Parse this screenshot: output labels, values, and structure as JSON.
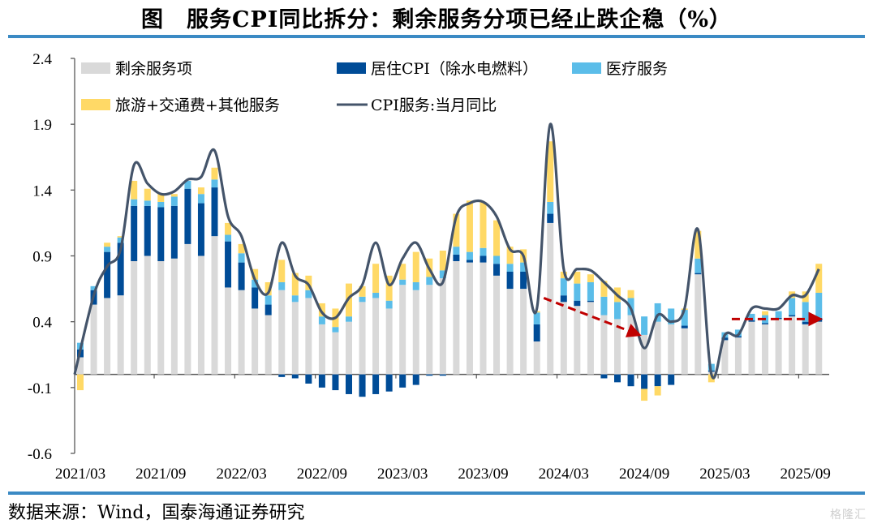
{
  "title": "图　服务CPI同比拆分：剩余服务分项已经止跌企稳（%）",
  "source": "数据来源：Wind，国泰海通证券研究",
  "watermark": "格隆汇",
  "chart_data": {
    "type": "bar",
    "stacked": true,
    "title": "服务CPI同比拆分：剩余服务分项已经止跌企稳（%）",
    "xlabel": "",
    "ylabel": "",
    "ylim": [
      -0.6,
      2.4
    ],
    "yticks": [
      2.4,
      1.9,
      1.4,
      0.9,
      0.4,
      -0.1,
      -0.6
    ],
    "xtick_labels": [
      "2021/03",
      "2021/09",
      "2022/03",
      "2022/09",
      "2023/03",
      "2023/09",
      "2024/03",
      "2024/09",
      "2025/03",
      "2025/09"
    ],
    "legend_position": "top-left",
    "colors": {
      "rest": "#d9d9d9",
      "housing": "#004c97",
      "medical": "#5bbde9",
      "travel": "#ffd966",
      "line": "#44546a",
      "arrow": "#c00000"
    },
    "categories": [
      "2021/03",
      "2021/04",
      "2021/05",
      "2021/06",
      "2021/07",
      "2021/08",
      "2021/09",
      "2021/10",
      "2021/11",
      "2021/12",
      "2022/01",
      "2022/02",
      "2022/03",
      "2022/04",
      "2022/05",
      "2022/06",
      "2022/07",
      "2022/08",
      "2022/09",
      "2022/10",
      "2022/11",
      "2022/12",
      "2023/01",
      "2023/02",
      "2023/03",
      "2023/04",
      "2023/05",
      "2023/06",
      "2023/07",
      "2023/08",
      "2023/09",
      "2023/10",
      "2023/11",
      "2023/12",
      "2024/01",
      "2024/02",
      "2024/03",
      "2024/04",
      "2024/05",
      "2024/06",
      "2024/07",
      "2024/08",
      "2024/09",
      "2024/10",
      "2024/11",
      "2024/12",
      "2025/01",
      "2025/02",
      "2025/03",
      "2025/04",
      "2025/05",
      "2025/06",
      "2025/07",
      "2025/08",
      "2025/09",
      "2025/10"
    ],
    "series": [
      {
        "name": "剩余服务项",
        "key": "rest",
        "values": [
          0.13,
          0.53,
          0.58,
          0.6,
          0.86,
          0.9,
          0.86,
          0.88,
          0.99,
          0.9,
          1.05,
          0.66,
          0.64,
          0.5,
          0.45,
          0.64,
          0.55,
          0.58,
          0.38,
          0.32,
          0.4,
          0.55,
          0.58,
          0.5,
          0.68,
          0.64,
          0.68,
          0.73,
          0.86,
          0.85,
          0.85,
          0.75,
          0.65,
          0.65,
          0.25,
          1.15,
          0.55,
          0.52,
          0.55,
          0.45,
          0.42,
          0.45,
          0.3,
          0.4,
          0.38,
          0.35,
          0.76,
          0.02,
          0.26,
          0.28,
          0.4,
          0.38,
          0.42,
          0.44,
          0.38,
          0.4
        ]
      },
      {
        "name": "居住CPI（除水电燃料）",
        "key": "housing",
        "values": [
          0.06,
          0.11,
          0.35,
          0.4,
          0.42,
          0.38,
          0.41,
          0.4,
          0.42,
          0.4,
          0.37,
          0.35,
          0.21,
          0.16,
          0.08,
          -0.02,
          -0.03,
          -0.07,
          -0.1,
          -0.12,
          -0.15,
          -0.17,
          -0.15,
          -0.13,
          -0.1,
          -0.08,
          -0.01,
          -0.01,
          0.05,
          0.02,
          0.05,
          0.09,
          0.13,
          0.13,
          0.13,
          0.07,
          0.05,
          0.04,
          0.01,
          -0.03,
          -0.06,
          -0.09,
          -0.11,
          -0.09,
          -0.08,
          0.02,
          0.01,
          0.01,
          0.02,
          0.01,
          0.01,
          0.01,
          0.01,
          0.01,
          0.02,
          0.03
        ]
      },
      {
        "name": "医疗服务",
        "key": "medical",
        "values": [
          0.05,
          0.03,
          0.04,
          0.04,
          0.05,
          0.04,
          0.04,
          0.07,
          0.06,
          0.07,
          0.06,
          0.05,
          0.07,
          0.06,
          0.07,
          0.06,
          0.05,
          0.06,
          0.06,
          0.04,
          0.04,
          0.04,
          0.04,
          0.06,
          0.04,
          0.06,
          0.06,
          0.06,
          0.06,
          0.06,
          0.06,
          0.06,
          0.06,
          0.07,
          0.09,
          0.09,
          0.13,
          0.13,
          0.14,
          0.14,
          0.13,
          0.13,
          0.14,
          0.14,
          0.12,
          0.12,
          0.11,
          0.05,
          0.04,
          0.05,
          0.05,
          0.06,
          0.05,
          0.13,
          0.15,
          0.19
        ]
      },
      {
        "name": "旅游+交通费+其他服务",
        "key": "travel",
        "values": [
          -0.12,
          0.0,
          0.03,
          0.01,
          0.14,
          0.09,
          0.06,
          0.02,
          0.0,
          0.05,
          0.09,
          0.09,
          0.07,
          0.08,
          0.1,
          0.17,
          0.17,
          0.11,
          0.1,
          0.14,
          0.25,
          0.08,
          0.22,
          0.19,
          0.12,
          0.23,
          0.14,
          0.15,
          0.25,
          0.39,
          0.35,
          0.27,
          0.13,
          0.1,
          0.01,
          0.46,
          0.05,
          0.09,
          0.06,
          0.12,
          0.11,
          0.06,
          -0.09,
          -0.07,
          0.0,
          0.01,
          0.21,
          -0.06,
          0.0,
          0.0,
          0.0,
          0.03,
          0.0,
          0.05,
          0.08,
          0.22
        ]
      },
      {
        "name": "CPI服务:当月同比",
        "key": "line",
        "type": "line",
        "values": [
          0.0,
          0.6,
          0.82,
          0.95,
          1.59,
          1.45,
          1.37,
          1.39,
          1.48,
          1.5,
          1.7,
          1.2,
          1.05,
          0.72,
          0.62,
          1.0,
          0.75,
          0.68,
          0.47,
          0.43,
          0.58,
          0.68,
          1.0,
          0.68,
          0.88,
          1.0,
          0.8,
          0.7,
          1.2,
          1.3,
          1.31,
          1.2,
          0.95,
          0.9,
          0.5,
          1.9,
          0.8,
          0.8,
          0.79,
          0.7,
          0.6,
          0.5,
          0.2,
          0.45,
          0.4,
          0.5,
          1.1,
          0.0,
          0.3,
          0.3,
          0.5,
          0.5,
          0.5,
          0.6,
          0.6,
          0.8
        ]
      }
    ],
    "annotations": [
      {
        "type": "dashed-arrow",
        "from": {
          "x": "2024/02",
          "y": 0.58
        },
        "to": {
          "x": "2024/09",
          "y": 0.3
        }
      },
      {
        "type": "dashed-arrow",
        "from": {
          "x": "2025/04",
          "y": 0.42
        },
        "to": {
          "x": "2025/10",
          "y": 0.42
        }
      }
    ]
  }
}
